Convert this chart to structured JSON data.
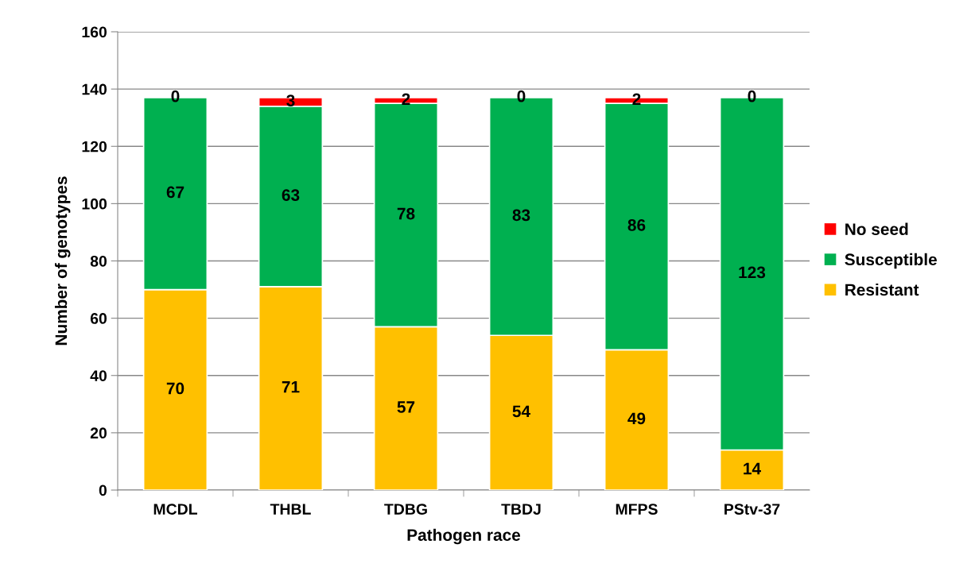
{
  "chart_data": {
    "type": "bar",
    "stacked": true,
    "xlabel": "Pathogen race",
    "ylabel": "Number of genotypes",
    "categories": [
      "MCDL",
      "THBL",
      "TDBG",
      "TBDJ",
      "MFPS",
      "PStv-37"
    ],
    "series": [
      {
        "name": "Resistant",
        "color": "#ffc000",
        "values": [
          70,
          71,
          57,
          54,
          49,
          14
        ]
      },
      {
        "name": "Susceptible",
        "color": "#00b050",
        "values": [
          67,
          63,
          78,
          83,
          86,
          123
        ]
      },
      {
        "name": "No seed",
        "color": "#ff0000",
        "values": [
          0,
          3,
          2,
          0,
          2,
          0
        ]
      }
    ],
    "ylim": [
      0,
      160
    ],
    "yticks": [
      0,
      20,
      40,
      60,
      80,
      100,
      120,
      140,
      160
    ],
    "grid": "y",
    "legend": "right",
    "data_labels": true
  }
}
